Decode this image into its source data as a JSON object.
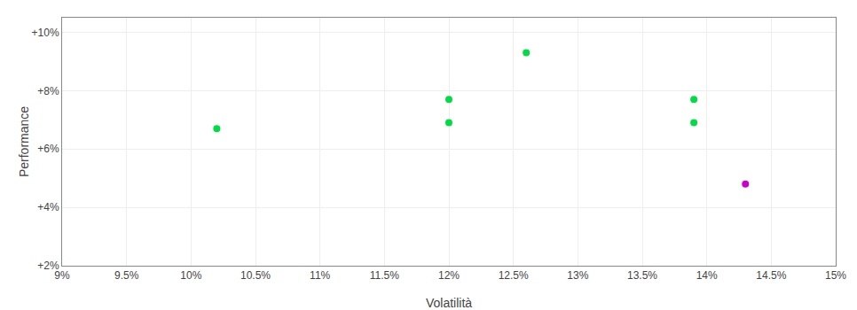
{
  "chart_data": {
    "type": "scatter",
    "xlabel": "Volatilità",
    "ylabel": "Performance",
    "series": [
      {
        "color": "#00dd44",
        "marker": "circle",
        "x": [
          0.102,
          0.12,
          0.12,
          0.126,
          0.139,
          0.139
        ],
        "values": [
          0.067,
          0.077,
          0.069,
          0.093,
          0.077,
          0.069
        ]
      },
      {
        "color": "#cc00cc",
        "marker": "circle",
        "x": [
          0.143
        ],
        "values": [
          0.048
        ]
      }
    ],
    "xlim": [
      0.09,
      0.15
    ],
    "ylim": [
      0.02,
      0.105
    ],
    "xticks": [
      {
        "value": 0.09,
        "label": "9%"
      },
      {
        "value": 0.095,
        "label": "9.5%"
      },
      {
        "value": 0.1,
        "label": "10%"
      },
      {
        "value": 0.105,
        "label": "10.5%"
      },
      {
        "value": 0.11,
        "label": "11%"
      },
      {
        "value": 0.115,
        "label": "11.5%"
      },
      {
        "value": 0.12,
        "label": "12%"
      },
      {
        "value": 0.125,
        "label": "12.5%"
      },
      {
        "value": 0.13,
        "label": "13%"
      },
      {
        "value": 0.135,
        "label": "13.5%"
      },
      {
        "value": 0.14,
        "label": "14%"
      },
      {
        "value": 0.145,
        "label": "14.5%"
      },
      {
        "value": 0.15,
        "label": "15%"
      }
    ],
    "yticks": [
      {
        "value": 0.02,
        "label": "+2%"
      },
      {
        "value": 0.04,
        "label": "+4%"
      },
      {
        "value": 0.06,
        "label": "+6%"
      },
      {
        "value": 0.08,
        "label": "+8%"
      },
      {
        "value": 0.1,
        "label": "+10%"
      }
    ],
    "grid": true
  }
}
